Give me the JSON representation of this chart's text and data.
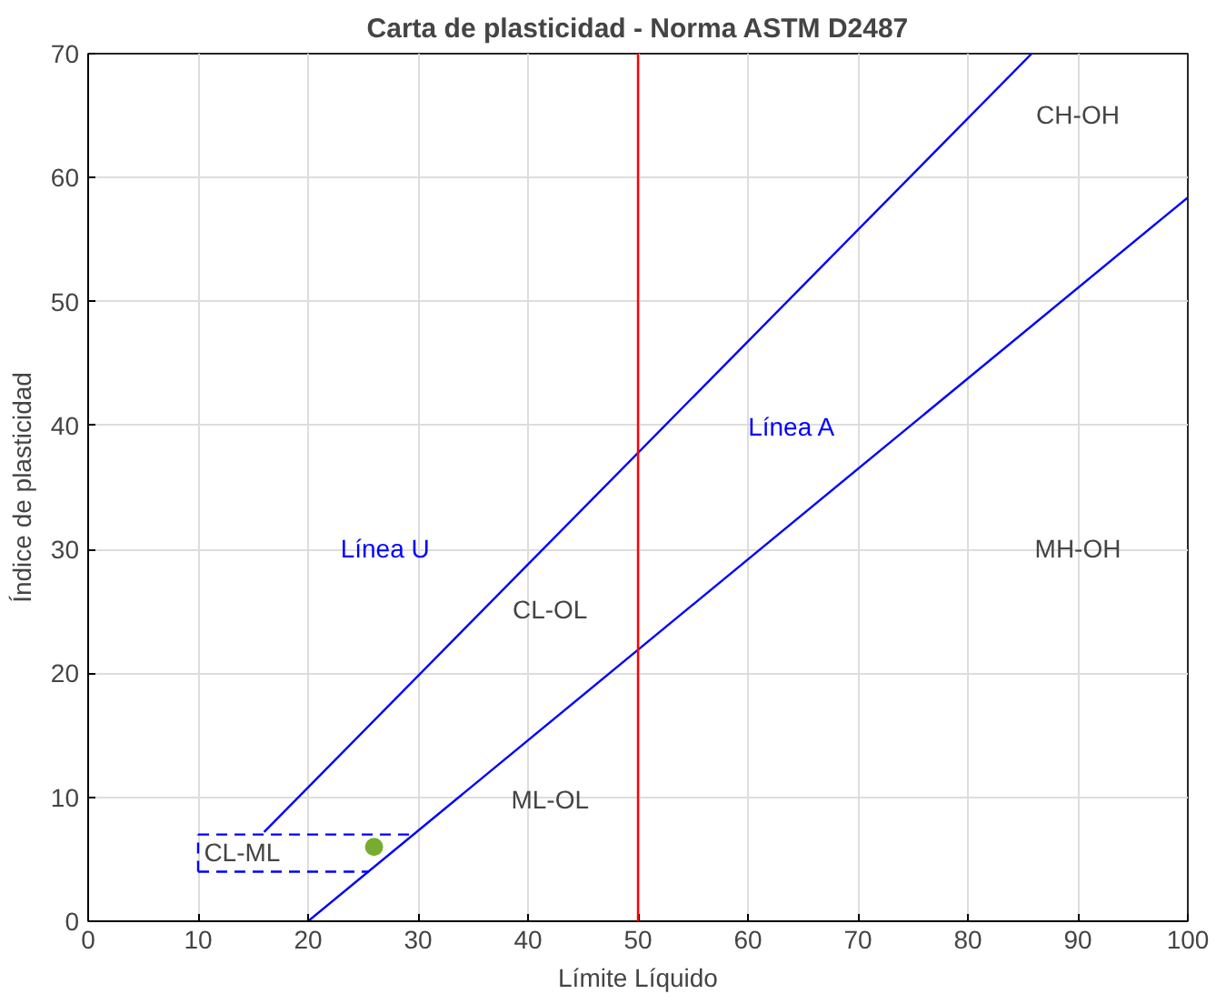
{
  "chart_data": {
    "type": "line",
    "title": "Carta de plasticidad - Norma ASTM D2487",
    "xlabel": "Límite Líquido",
    "ylabel": "Índice de plasticidad",
    "xlim": [
      0,
      100
    ],
    "ylim": [
      0,
      70
    ],
    "xticks": [
      0,
      10,
      20,
      30,
      40,
      50,
      60,
      70,
      80,
      90,
      100
    ],
    "yticks": [
      0,
      10,
      20,
      30,
      40,
      50,
      60,
      70
    ],
    "grid": true,
    "marker": "none",
    "series": [
      {
        "name": "Línea U",
        "color": "#0000ff",
        "x": [
          16,
          85.8
        ],
        "values": [
          7.2,
          70
        ]
      },
      {
        "name": "Línea A",
        "color": "#0000ff",
        "x": [
          20,
          100
        ],
        "values": [
          0,
          58.4
        ]
      },
      {
        "color": "#0000ff",
        "line_style": "dashed",
        "x": [
          10,
          29.6
        ],
        "values": [
          7,
          7
        ]
      },
      {
        "color": "#0000ff",
        "line_style": "dashed",
        "x": [
          10,
          25.5
        ],
        "values": [
          4,
          4
        ]
      },
      {
        "color": "#0000ff",
        "line_style": "dashed",
        "x": [
          10,
          10
        ],
        "values": [
          4,
          7
        ]
      },
      {
        "type": "scatter",
        "marker": "circle",
        "color": "#77ac30",
        "x": [
          26
        ],
        "values": [
          6
        ]
      }
    ],
    "ref_lines": [
      {
        "axis": "x",
        "value": 50,
        "color": "#ff0000"
      }
    ],
    "annotations": [
      "CH-OH",
      "MH-OH",
      "CL-OL",
      "ML-OL",
      "CL-ML"
    ]
  }
}
